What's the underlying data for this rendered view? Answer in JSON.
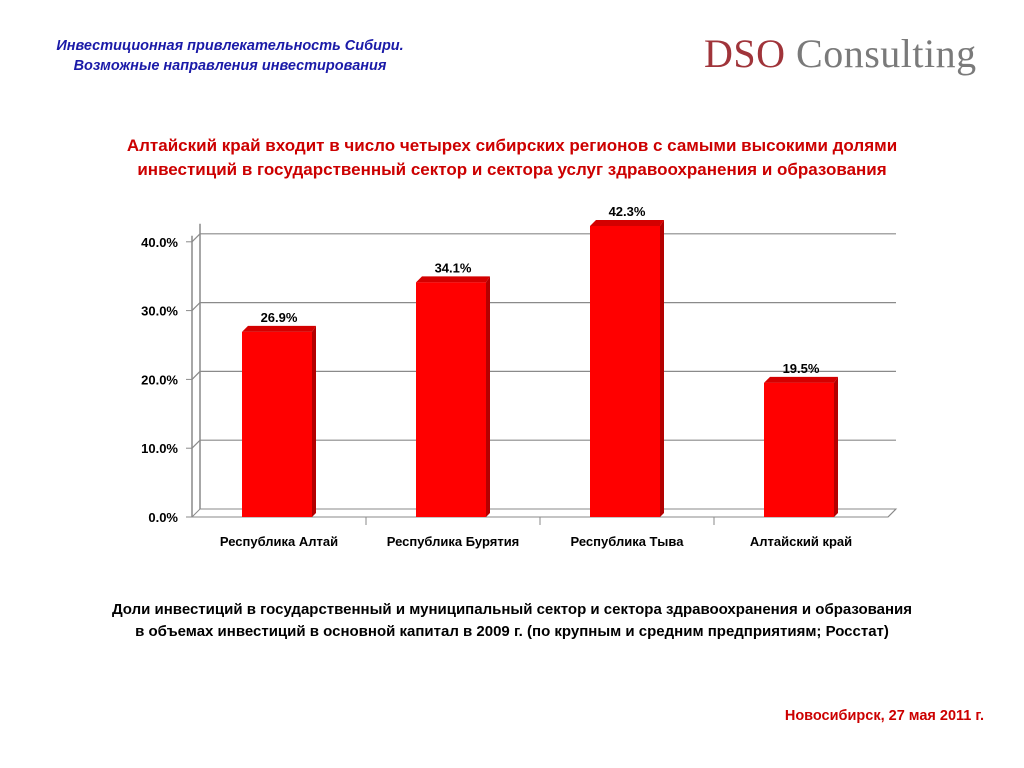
{
  "header": {
    "title_line1": "Инвестиционная привлекательность Сибири.",
    "title_line2": "Возможные направления инвестирования"
  },
  "logo": {
    "part1": "DSO",
    "part2": "Consulting"
  },
  "headline": {
    "line1": "Алтайский край входит в число четырех сибирских регионов с самыми высокими долями",
    "line2": "инвестиций в государственный сектор и сектора услуг здравоохранения и образования"
  },
  "chart_data": {
    "type": "bar",
    "title": "",
    "xlabel": "",
    "ylabel": "",
    "categories": [
      "Республика Алтай",
      "Республика Бурятия",
      "Республика Тыва",
      "Алтайский край"
    ],
    "values": [
      26.9,
      34.1,
      42.3,
      19.5
    ],
    "data_labels": [
      "26.9%",
      "34.1%",
      "42.3%",
      "19.5%"
    ],
    "ylim": [
      0,
      40
    ],
    "yticks": [
      0,
      10,
      20,
      30,
      40
    ],
    "ytick_labels": [
      "0.0%",
      "10.0%",
      "20.0%",
      "30.0%",
      "40.0%"
    ],
    "grid": true,
    "legend": "none",
    "style": "3d",
    "bar_color": "#ff0000",
    "bar_side_color": "#b30000",
    "bar_top_color": "#d40000"
  },
  "caption": {
    "line1": "Доли инвестиций в государственный и муниципальный сектор и сектора здравоохранения и образования",
    "line2": "в объемах инвестиций в основной капитал в 2009 г.  (по крупным и средним предприятиям; Росстат)"
  },
  "footer": {
    "date": "Новосибирск, 27 мая 2011 г."
  }
}
